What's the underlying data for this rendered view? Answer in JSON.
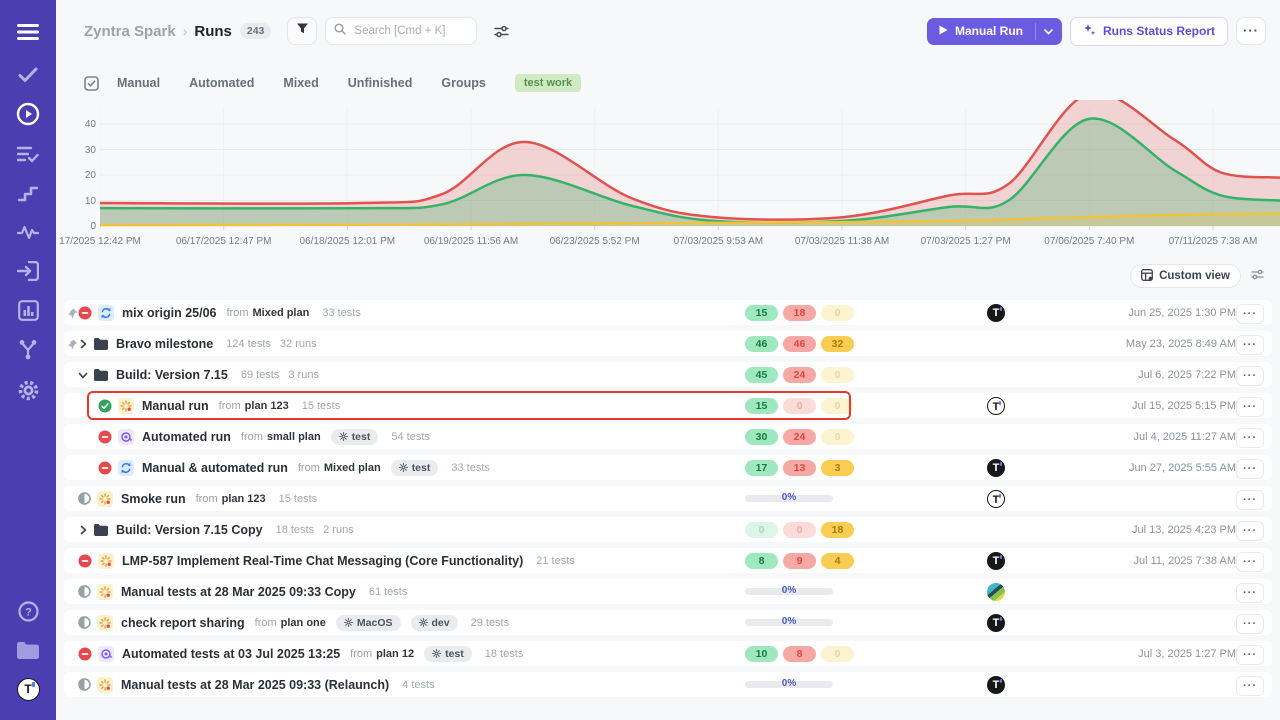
{
  "header": {
    "project": "Zyntra Spark",
    "separator": "›",
    "page": "Runs",
    "count": "243",
    "search_placeholder": "Search [Cmd + K]",
    "manual_run": "Manual Run",
    "runs_status_report": "Runs Status Report"
  },
  "tabs": {
    "items": [
      "Manual",
      "Automated",
      "Mixed",
      "Unfinished",
      "Groups"
    ],
    "tag": "test work"
  },
  "chart_data": {
    "type": "area",
    "title": "",
    "xlabel": "",
    "ylabel": "",
    "x_labels": [
      "17/2025 12:42 PM",
      "06/17/2025 12:47 PM",
      "06/18/2025 12:01 PM",
      "06/19/2025 11:56 AM",
      "06/23/2025 5:52 PM",
      "07/03/2025 9:53 AM",
      "07/03/2025 11:38 AM",
      "07/03/2025 1:27 PM",
      "07/06/2025 7:40 PM",
      "07/11/2025 7:38 AM"
    ],
    "y_ticks": [
      0,
      10,
      20,
      30,
      40
    ],
    "ylim": [
      0,
      49
    ],
    "grid": true,
    "legend": false,
    "series": [
      {
        "name": "red",
        "color": "#e0524e",
        "fill": "rgba(224,82,78,0.22)",
        "points": [
          [
            0,
            9
          ],
          [
            0.22,
            9
          ],
          [
            0.29,
            12.5
          ],
          [
            0.36,
            33
          ],
          [
            0.45,
            11
          ],
          [
            0.52,
            3.5
          ],
          [
            0.63,
            3.5
          ],
          [
            0.72,
            12
          ],
          [
            0.77,
            16.5
          ],
          [
            0.838,
            52
          ],
          [
            0.91,
            34
          ],
          [
            0.95,
            21
          ],
          [
            1,
            19
          ]
        ]
      },
      {
        "name": "green",
        "color": "#34b368",
        "fill": "rgba(52,179,104,0.28)",
        "points": [
          [
            0,
            7
          ],
          [
            0.22,
            7
          ],
          [
            0.29,
            8.5
          ],
          [
            0.36,
            20
          ],
          [
            0.45,
            8
          ],
          [
            0.52,
            2
          ],
          [
            0.63,
            2
          ],
          [
            0.72,
            7.5
          ],
          [
            0.77,
            10
          ],
          [
            0.838,
            42
          ],
          [
            0.91,
            22
          ],
          [
            0.95,
            12
          ],
          [
            1,
            10
          ]
        ]
      },
      {
        "name": "yellow",
        "color": "#f0c33c",
        "fill": "rgba(240,195,60,0.22)",
        "points": [
          [
            0,
            0.4
          ],
          [
            0.25,
            0.5
          ],
          [
            0.4,
            1
          ],
          [
            0.52,
            1.2
          ],
          [
            0.63,
            1.5
          ],
          [
            0.72,
            2
          ],
          [
            0.8,
            3
          ],
          [
            0.9,
            4.2
          ],
          [
            1,
            5
          ]
        ]
      }
    ]
  },
  "list": {
    "custom_view": "Custom view",
    "from_label": "from",
    "rows": [
      {
        "pin": true,
        "expand": null,
        "folder": false,
        "indent": 0,
        "status": "stopped",
        "type": "mixed",
        "name": "mix origin 25/06",
        "plan": "Mixed plan",
        "env": [],
        "tests": "33 tests",
        "runs": "",
        "stats": {
          "kind": "badges",
          "badges": [
            {
              "value": "15",
              "style": "green"
            },
            {
              "value": "18",
              "style": "red"
            },
            {
              "value": "0",
              "style": "yellow-faded"
            }
          ]
        },
        "avatar": "black-t",
        "date": "Jun 25, 2025 1:30 PM",
        "highlighted": false
      },
      {
        "pin": true,
        "expand": "right",
        "folder": true,
        "indent": 0,
        "status": null,
        "type": null,
        "name": "Bravo milestone",
        "plan": "",
        "env": [],
        "tests": "124 tests",
        "runs": "32 runs",
        "stats": {
          "kind": "badges",
          "badges": [
            {
              "value": "46",
              "style": "green"
            },
            {
              "value": "46",
              "style": "red"
            },
            {
              "value": "32",
              "style": "yellow"
            }
          ]
        },
        "avatar": null,
        "date": "May 23, 2025 8:49 AM",
        "highlighted": false
      },
      {
        "pin": false,
        "expand": "down",
        "folder": true,
        "indent": 0,
        "status": null,
        "type": null,
        "name": "Build: Version 7.15",
        "plan": "",
        "env": [],
        "tests": "69 tests",
        "runs": "3 runs",
        "stats": {
          "kind": "badges",
          "badges": [
            {
              "value": "45",
              "style": "green"
            },
            {
              "value": "24",
              "style": "red"
            },
            {
              "value": "0",
              "style": "yellow-faded"
            }
          ]
        },
        "avatar": null,
        "date": "Jul 6, 2025 7:22 PM",
        "highlighted": false
      },
      {
        "pin": false,
        "expand": null,
        "folder": false,
        "indent": 1,
        "status": "passed",
        "type": "manual",
        "name": "Manual run",
        "plan": "plan 123",
        "env": [],
        "tests": "15 tests",
        "runs": "",
        "stats": {
          "kind": "badges",
          "badges": [
            {
              "value": "15",
              "style": "green"
            },
            {
              "value": "0",
              "style": "red-faded"
            },
            {
              "value": "0",
              "style": "yellow-faded"
            }
          ]
        },
        "avatar": "outline-t",
        "date": "Jul 15, 2025 5:15 PM",
        "highlighted": true
      },
      {
        "pin": false,
        "expand": null,
        "folder": false,
        "indent": 1,
        "status": "stopped",
        "type": "automated",
        "name": "Automated run",
        "plan": "small plan",
        "env": [
          "test"
        ],
        "tests": "54 tests",
        "runs": "",
        "stats": {
          "kind": "badges",
          "badges": [
            {
              "value": "30",
              "style": "green"
            },
            {
              "value": "24",
              "style": "red"
            },
            {
              "value": "0",
              "style": "yellow-faded"
            }
          ]
        },
        "avatar": null,
        "date": "Jul 4, 2025 11:27 AM",
        "highlighted": false
      },
      {
        "pin": false,
        "expand": null,
        "folder": false,
        "indent": 1,
        "status": "stopped",
        "type": "mixed",
        "name": "Manual & automated run",
        "plan": "Mixed plan",
        "env": [
          "test"
        ],
        "tests": "33 tests",
        "runs": "",
        "stats": {
          "kind": "badges",
          "badges": [
            {
              "value": "17",
              "style": "green"
            },
            {
              "value": "13",
              "style": "red"
            },
            {
              "value": "3",
              "style": "yellow"
            }
          ]
        },
        "avatar": "black-t",
        "date": "Jun 27, 2025 5:55 AM",
        "highlighted": false
      },
      {
        "pin": false,
        "expand": null,
        "folder": false,
        "indent": 0,
        "status": "progress",
        "type": "manual",
        "name": "Smoke run",
        "plan": "plan 123",
        "env": [],
        "tests": "15 tests",
        "runs": "",
        "stats": {
          "kind": "progress",
          "value": "0%"
        },
        "avatar": "outline-t",
        "date": "",
        "highlighted": false
      },
      {
        "pin": false,
        "expand": "right",
        "folder": true,
        "indent": 0,
        "status": null,
        "type": null,
        "name": "Build: Version 7.15 Copy",
        "plan": "",
        "env": [],
        "tests": "18 tests",
        "runs": "2 runs",
        "stats": {
          "kind": "badges",
          "badges": [
            {
              "value": "0",
              "style": "green-faded"
            },
            {
              "value": "0",
              "style": "red-faded"
            },
            {
              "value": "18",
              "style": "yellow"
            }
          ]
        },
        "avatar": null,
        "date": "Jul 13, 2025 4:23 PM",
        "highlighted": false
      },
      {
        "pin": false,
        "expand": null,
        "folder": false,
        "indent": 0,
        "status": "stopped",
        "type": "manual",
        "name": "LMP-587 Implement Real-Time Chat Messaging (Core Functionality)",
        "plan": "",
        "env": [],
        "tests": "21 tests",
        "runs": "",
        "stats": {
          "kind": "badges",
          "badges": [
            {
              "value": "8",
              "style": "green"
            },
            {
              "value": "9",
              "style": "red"
            },
            {
              "value": "4",
              "style": "yellow"
            }
          ]
        },
        "avatar": "black-t",
        "date": "Jul 11, 2025 7:38 AM",
        "highlighted": false
      },
      {
        "pin": false,
        "expand": null,
        "folder": false,
        "indent": 0,
        "status": "progress",
        "type": "manual",
        "name": "Manual tests at 28 Mar 2025 09:33 Copy",
        "plan": "",
        "env": [],
        "tests": "61 tests",
        "runs": "",
        "stats": {
          "kind": "progress",
          "value": "0%"
        },
        "avatar": "globe",
        "date": "",
        "highlighted": false
      },
      {
        "pin": false,
        "expand": null,
        "folder": false,
        "indent": 0,
        "status": "progress",
        "type": "manual",
        "name": "check report sharing",
        "plan": "plan one",
        "env": [
          "MacOS",
          "dev"
        ],
        "tests": "29 tests",
        "runs": "",
        "stats": {
          "kind": "progress",
          "value": "0%"
        },
        "avatar": "black-t",
        "date": "",
        "highlighted": false
      },
      {
        "pin": false,
        "expand": null,
        "folder": false,
        "indent": 0,
        "status": "stopped",
        "type": "automated",
        "name": "Automated tests at 03 Jul 2025 13:25",
        "plan": "plan 12",
        "env": [
          "test"
        ],
        "tests": "18 tests",
        "runs": "",
        "stats": {
          "kind": "badges",
          "badges": [
            {
              "value": "10",
              "style": "green"
            },
            {
              "value": "8",
              "style": "red"
            },
            {
              "value": "0",
              "style": "yellow-faded"
            }
          ]
        },
        "avatar": null,
        "date": "Jul 3, 2025 1:27 PM",
        "highlighted": false
      },
      {
        "pin": false,
        "expand": null,
        "folder": false,
        "indent": 0,
        "status": "progress",
        "type": "manual",
        "name": "Manual tests at 28 Mar 2025 09:33 (Relaunch)",
        "plan": "",
        "env": [],
        "tests": "4 tests",
        "runs": "",
        "stats": {
          "kind": "progress",
          "value": "0%"
        },
        "avatar": "black-t",
        "date": "",
        "highlighted": false
      }
    ]
  },
  "colors": {
    "sidebar": "#4a3eb1",
    "accent": "#6a5be0",
    "highlight_border": "#e23a30",
    "badge_green": "#9fe7bf",
    "badge_red": "#f6a9a4",
    "badge_yellow": "#f8cd52",
    "tag_green": "#d0ebc4"
  }
}
